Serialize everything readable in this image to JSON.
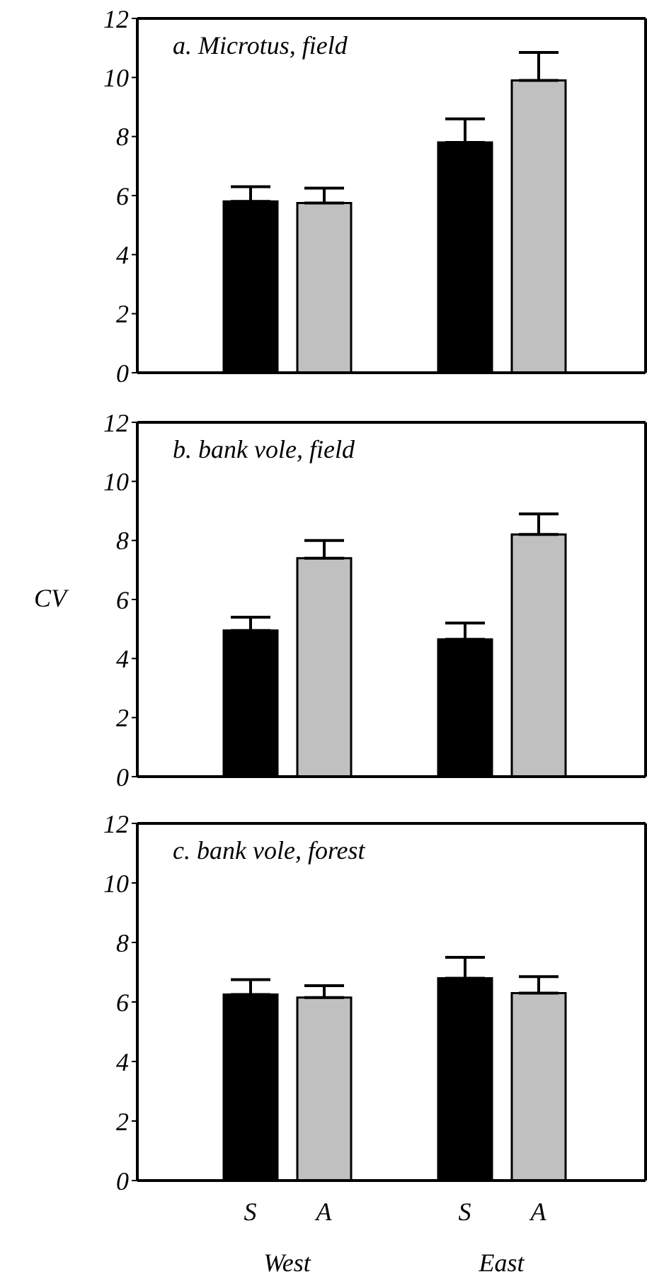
{
  "chart_data": [
    {
      "type": "bar",
      "title": "a. Microtus, field",
      "categories": [
        null,
        null
      ],
      "ylim": [
        0,
        12
      ],
      "yticks": [
        0,
        2,
        4,
        6,
        8,
        10,
        12
      ],
      "tick_labels": "y",
      "series": [
        {
          "color": "#000000",
          "values": [
            5.8,
            7.8
          ],
          "errors": [
            [
              5.8,
              6.3
            ],
            [
              7.8,
              8.6
            ]
          ]
        },
        {
          "color": "#c0c0c0",
          "values": [
            5.75,
            9.9
          ],
          "errors": [
            [
              5.75,
              6.25
            ],
            [
              9.9,
              10.85
            ]
          ]
        }
      ]
    },
    {
      "type": "bar",
      "title": "b. bank vole, field",
      "ylabel": "CV",
      "categories": [
        null,
        null
      ],
      "ylim": [
        0,
        12
      ],
      "yticks": [
        0,
        2,
        4,
        6,
        8,
        10,
        12
      ],
      "tick_labels": "y",
      "series": [
        {
          "color": "#000000",
          "values": [
            4.95,
            4.65
          ],
          "errors": [
            [
              4.95,
              5.4
            ],
            [
              4.65,
              5.2
            ]
          ]
        },
        {
          "color": "#c0c0c0",
          "values": [
            7.4,
            8.2
          ],
          "errors": [
            [
              7.4,
              8.0
            ],
            [
              8.2,
              8.9
            ]
          ]
        }
      ]
    },
    {
      "type": "bar",
      "title": "c. bank vole, forest",
      "categories": [
        "West",
        "East"
      ],
      "ylim": [
        0,
        12
      ],
      "yticks": [
        0,
        2,
        4,
        6,
        8,
        10,
        12
      ],
      "series": [
        {
          "name": "S",
          "color": "#000000",
          "values": [
            6.25,
            6.8
          ],
          "errors": [
            [
              6.25,
              6.75
            ],
            [
              6.8,
              7.5
            ]
          ]
        },
        {
          "name": "A",
          "color": "#c0c0c0",
          "values": [
            6.15,
            6.3
          ],
          "errors": [
            [
              6.15,
              6.55
            ],
            [
              6.3,
              6.85
            ]
          ]
        }
      ]
    }
  ]
}
